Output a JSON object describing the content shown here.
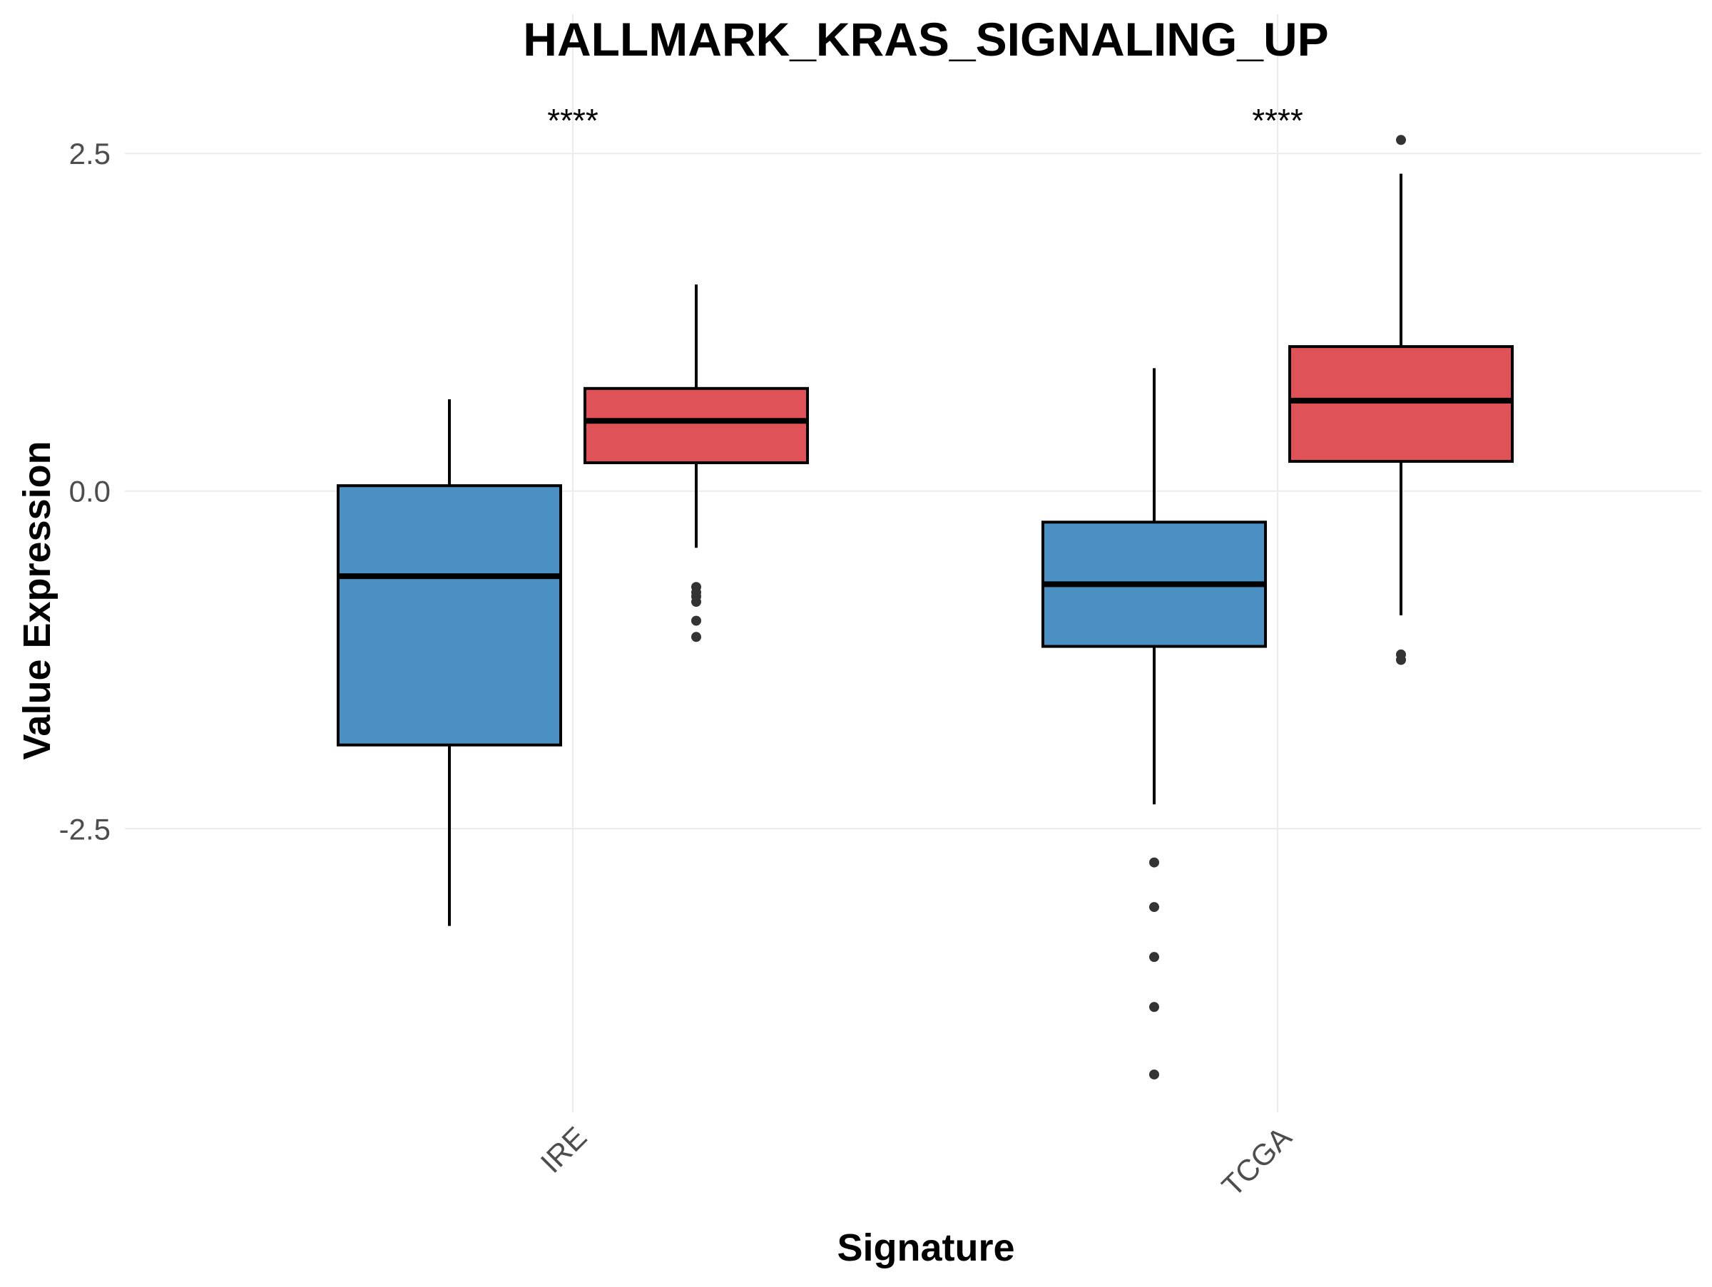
{
  "chart_data": {
    "type": "boxplot",
    "title": "HALLMARK_KRAS_SIGNALING_UP",
    "xlabel": "Signature",
    "ylabel": "Value Expression",
    "ylim": [
      -4.6,
      2.95
    ],
    "yticks": [
      2.5,
      0.0,
      -2.5
    ],
    "ytick_labels": [
      "2.5",
      "0.0",
      "-2.5"
    ],
    "categories": [
      "IRE",
      "TCGA"
    ],
    "grid": true,
    "colors": {
      "blue": "#4a90c2",
      "red": "#df5257",
      "grid": "#ebebeb",
      "outline": "#000000",
      "outlier": "#333333"
    },
    "groups": [
      {
        "category": "IRE",
        "significance": "****",
        "boxes": [
          {
            "color": "blue",
            "whisker_low": -3.22,
            "q1": -1.88,
            "median": -0.63,
            "q3": 0.04,
            "whisker_high": 0.68,
            "outliers": []
          },
          {
            "color": "red",
            "whisker_low": -0.42,
            "q1": 0.21,
            "median": 0.52,
            "q3": 0.76,
            "whisker_high": 1.53,
            "outliers": [
              -0.71,
              -0.75,
              -0.78,
              -0.82,
              -0.96,
              -1.08
            ]
          }
        ]
      },
      {
        "category": "TCGA",
        "significance": "****",
        "boxes": [
          {
            "color": "blue",
            "whisker_low": -2.32,
            "q1": -1.15,
            "median": -0.69,
            "q3": -0.23,
            "whisker_high": 0.91,
            "outliers": [
              -2.75,
              -3.08,
              -3.45,
              -3.82,
              -4.32
            ]
          },
          {
            "color": "red",
            "whisker_low": -0.92,
            "q1": 0.22,
            "median": 0.67,
            "q3": 1.07,
            "whisker_high": 2.35,
            "outliers": [
              2.6,
              -1.21,
              -1.25
            ]
          }
        ]
      }
    ]
  }
}
